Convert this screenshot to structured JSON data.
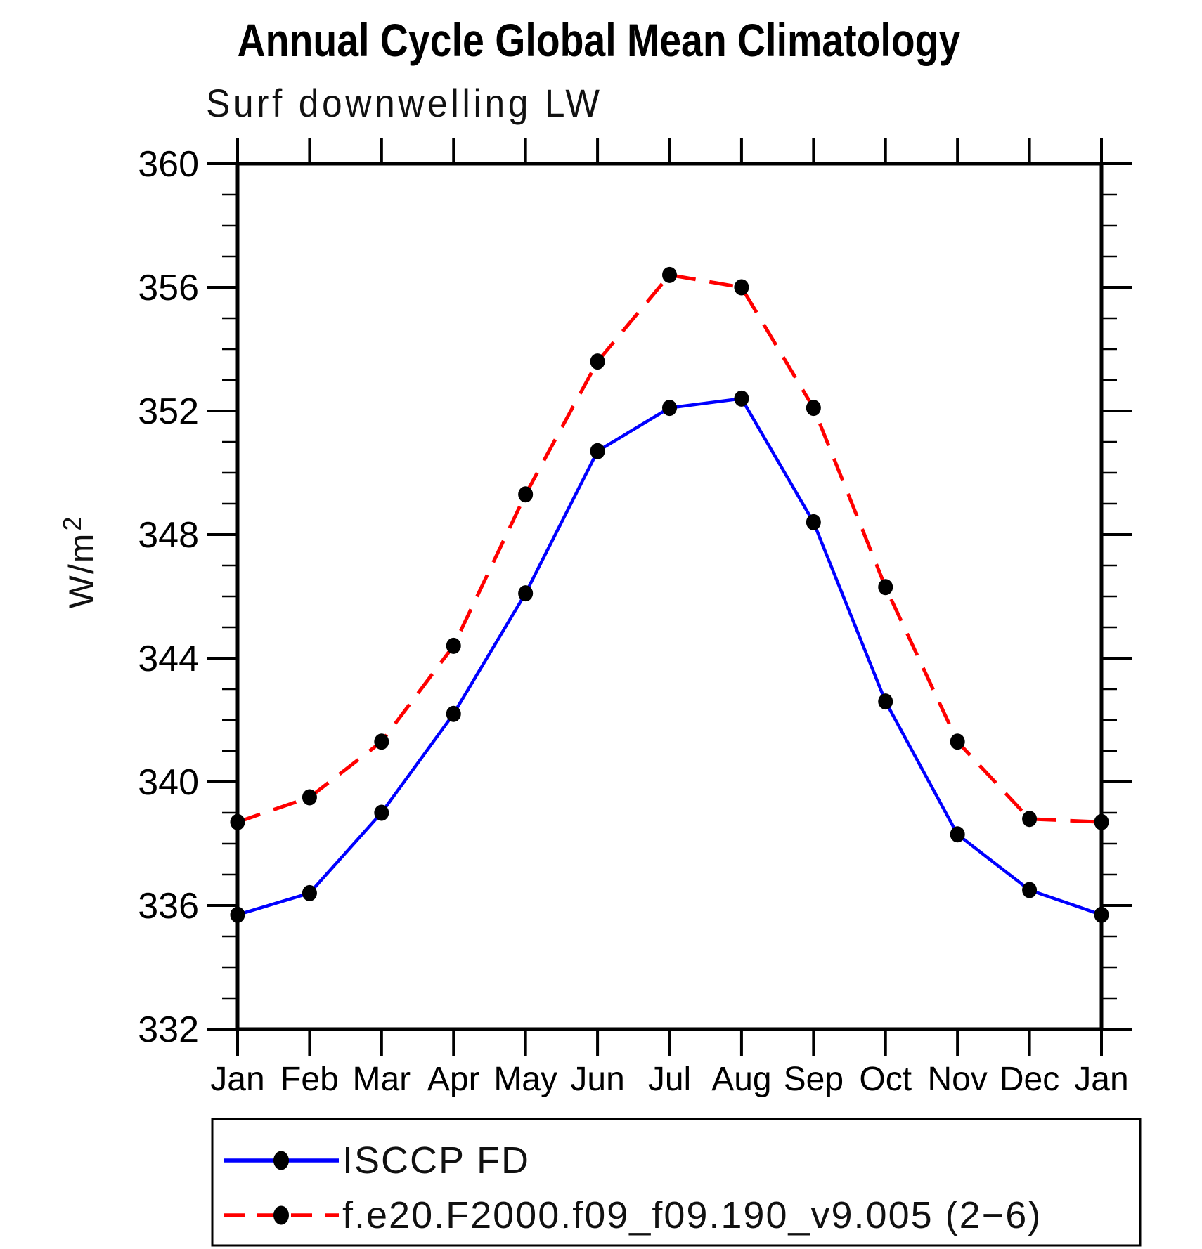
{
  "title": "Annual Cycle Global Mean Climatology",
  "subtitle": "Surf downwelling LW",
  "ylabel_base": "W/m",
  "ylabel_exp": "2",
  "legend": [
    {
      "label": "ISCCP FD",
      "color": "#0000ff",
      "style": "solid"
    },
    {
      "label": "f.e20.F2000.f09_f09.190_v9.005 (2−6)",
      "color": "#ff0000",
      "style": "dashed"
    }
  ],
  "chart_data": {
    "type": "line",
    "title": "Annual Cycle Global Mean Climatology",
    "subtitle": "Surf downwelling LW",
    "ylabel": "W/m²",
    "x_categories": [
      "Jan",
      "Feb",
      "Mar",
      "Apr",
      "May",
      "Jun",
      "Jul",
      "Aug",
      "Sep",
      "Oct",
      "Nov",
      "Dec",
      "Jan"
    ],
    "series": [
      {
        "name": "ISCCP FD",
        "color": "#0000ff",
        "line_style": "solid",
        "marker": "black-dot",
        "values": [
          335.7,
          336.4,
          339.0,
          342.2,
          346.1,
          350.7,
          352.1,
          352.4,
          348.4,
          342.6,
          338.3,
          336.5,
          335.7
        ]
      },
      {
        "name": "f.e20.F2000.f09_f09.190_v9.005 (2−6)",
        "color": "#ff0000",
        "line_style": "dashed",
        "marker": "black-dot",
        "values": [
          338.7,
          339.5,
          341.3,
          344.4,
          349.3,
          353.6,
          356.4,
          356.0,
          352.1,
          346.3,
          341.3,
          338.8,
          338.7
        ]
      }
    ],
    "ylim": [
      332,
      360
    ],
    "y_major_ticks": [
      332,
      336,
      340,
      344,
      348,
      352,
      356,
      360
    ],
    "y_minor_step": 1,
    "grid": false,
    "legend_position": "bottom-left-box",
    "marker_color": "#000000"
  }
}
